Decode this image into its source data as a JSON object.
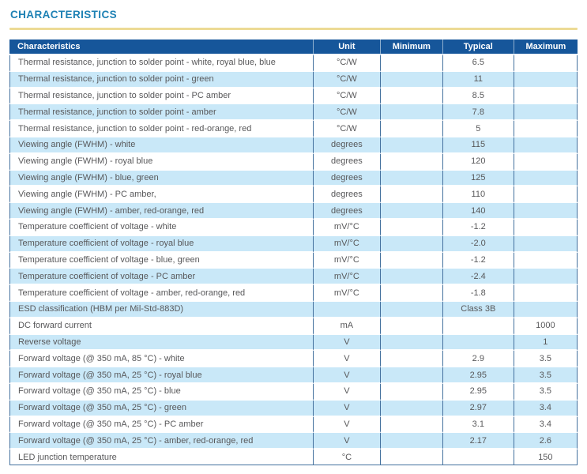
{
  "page": {
    "title": "CHARACTERISTICS"
  },
  "colors": {
    "title_text": "#1E81B4",
    "accent_rule": "#E8D385",
    "header_bg": "#16569A",
    "header_text": "#FFFFFF",
    "row_alt_bg": "#C9E8F8",
    "body_text": "#58585A",
    "grid_line": "#44719E"
  },
  "table": {
    "columns": [
      "Characteristics",
      "Unit",
      "Minimum",
      "Typical",
      "Maximum"
    ],
    "rows": [
      {
        "characteristic": "Thermal resistance, junction to solder point - white, royal blue, blue",
        "unit": "°C/W",
        "minimum": "",
        "typical": "6.5",
        "maximum": ""
      },
      {
        "characteristic": "Thermal resistance, junction to solder point - green",
        "unit": "°C/W",
        "minimum": "",
        "typical": "11",
        "maximum": ""
      },
      {
        "characteristic": "Thermal resistance, junction to solder point - PC amber",
        "unit": "°C/W",
        "minimum": "",
        "typical": "8.5",
        "maximum": ""
      },
      {
        "characteristic": "Thermal resistance, junction to solder point - amber",
        "unit": "°C/W",
        "minimum": "",
        "typical": "7.8",
        "maximum": ""
      },
      {
        "characteristic": "Thermal resistance, junction to solder point - red-orange, red",
        "unit": "°C/W",
        "minimum": "",
        "typical": "5",
        "maximum": ""
      },
      {
        "characteristic": "Viewing angle (FWHM) - white",
        "unit": "degrees",
        "minimum": "",
        "typical": "115",
        "maximum": ""
      },
      {
        "characteristic": "Viewing angle (FWHM) - royal blue",
        "unit": "degrees",
        "minimum": "",
        "typical": "120",
        "maximum": ""
      },
      {
        "characteristic": "Viewing angle (FWHM) - blue, green",
        "unit": "degrees",
        "minimum": "",
        "typical": "125",
        "maximum": ""
      },
      {
        "characteristic": "Viewing angle (FWHM) - PC amber,",
        "unit": "degrees",
        "minimum": "",
        "typical": "110",
        "maximum": ""
      },
      {
        "characteristic": "Viewing angle (FWHM) - amber, red-orange, red",
        "unit": "degrees",
        "minimum": "",
        "typical": "140",
        "maximum": ""
      },
      {
        "characteristic": "Temperature coefficient of voltage - white",
        "unit": "mV/°C",
        "minimum": "",
        "typical": "-1.2",
        "maximum": ""
      },
      {
        "characteristic": "Temperature coefficient of voltage - royal blue",
        "unit": "mV/°C",
        "minimum": "",
        "typical": "-2.0",
        "maximum": ""
      },
      {
        "characteristic": "Temperature coefficient of voltage - blue, green",
        "unit": "mV/°C",
        "minimum": "",
        "typical": "-1.2",
        "maximum": ""
      },
      {
        "characteristic": "Temperature coefficient of voltage - PC amber",
        "unit": "mV/°C",
        "minimum": "",
        "typical": "-2.4",
        "maximum": ""
      },
      {
        "characteristic": "Temperature coefficient of voltage - amber, red-orange, red",
        "unit": "mV/°C",
        "minimum": "",
        "typical": "-1.8",
        "maximum": ""
      },
      {
        "characteristic": "ESD classification (HBM per Mil-Std-883D)",
        "unit": "",
        "minimum": "",
        "typical": "Class 3B",
        "maximum": ""
      },
      {
        "characteristic": "DC forward current",
        "unit": "mA",
        "minimum": "",
        "typical": "",
        "maximum": "1000"
      },
      {
        "characteristic": "Reverse voltage",
        "unit": "V",
        "minimum": "",
        "typical": "",
        "maximum": "1"
      },
      {
        "characteristic": "Forward voltage (@ 350 mA, 85 °C) - white",
        "unit": "V",
        "minimum": "",
        "typical": "2.9",
        "maximum": "3.5"
      },
      {
        "characteristic": "Forward voltage (@ 350 mA, 25 °C) - royal blue",
        "unit": "V",
        "minimum": "",
        "typical": "2.95",
        "maximum": "3.5"
      },
      {
        "characteristic": "Forward voltage (@ 350 mA, 25 °C) - blue",
        "unit": "V",
        "minimum": "",
        "typical": "2.95",
        "maximum": "3.5"
      },
      {
        "characteristic": "Forward voltage (@ 350 mA, 25 °C) - green",
        "unit": "V",
        "minimum": "",
        "typical": "2.97",
        "maximum": "3.4"
      },
      {
        "characteristic": "Forward voltage (@ 350 mA, 25 °C) - PC amber",
        "unit": "V",
        "minimum": "",
        "typical": "3.1",
        "maximum": "3.4"
      },
      {
        "characteristic": "Forward voltage (@ 350 mA, 25 °C) - amber, red-orange, red",
        "unit": "V",
        "minimum": "",
        "typical": "2.17",
        "maximum": "2.6"
      },
      {
        "characteristic": "LED junction temperature",
        "unit": "°C",
        "minimum": "",
        "typical": "",
        "maximum": "150"
      }
    ]
  }
}
